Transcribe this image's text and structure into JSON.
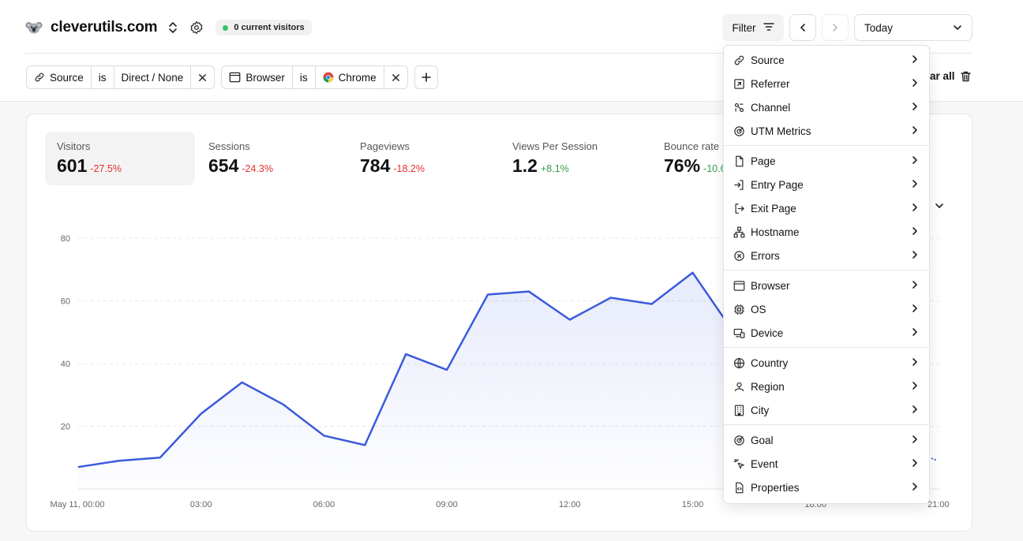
{
  "header": {
    "site_name": "cleverutils.com",
    "visitors_live": "0 current visitors",
    "filter_label": "Filter",
    "date_range": "Today",
    "clear_all": "ar all"
  },
  "filters": [
    {
      "field": "Source",
      "op": "is",
      "value": "Direct / None"
    },
    {
      "field": "Browser",
      "op": "is",
      "value": "Chrome"
    }
  ],
  "stats": [
    {
      "label": "Visitors",
      "value": "601",
      "change": "-27.5%",
      "trend": "negative",
      "active": true
    },
    {
      "label": "Sessions",
      "value": "654",
      "change": "-24.3%",
      "trend": "negative",
      "active": false
    },
    {
      "label": "Pageviews",
      "value": "784",
      "change": "-18.2%",
      "trend": "negative",
      "active": false
    },
    {
      "label": "Views Per Session",
      "value": "1.2",
      "change": "+8.1%",
      "trend": "positive",
      "active": false
    },
    {
      "label": "Bounce rate",
      "value": "76%",
      "change": "-10.6",
      "trend": "positive",
      "active": false
    }
  ],
  "filter_menu": {
    "groups": [
      [
        {
          "label": "Source",
          "icon": "link-icon"
        },
        {
          "label": "Referrer",
          "icon": "external-link-icon"
        },
        {
          "label": "Channel",
          "icon": "channel-icon"
        },
        {
          "label": "UTM Metrics",
          "icon": "target-icon"
        }
      ],
      [
        {
          "label": "Page",
          "icon": "file-icon"
        },
        {
          "label": "Entry Page",
          "icon": "log-in-icon"
        },
        {
          "label": "Exit Page",
          "icon": "log-out-icon"
        },
        {
          "label": "Hostname",
          "icon": "network-icon"
        },
        {
          "label": "Errors",
          "icon": "circle-x-icon"
        }
      ],
      [
        {
          "label": "Browser",
          "icon": "browser-icon"
        },
        {
          "label": "OS",
          "icon": "cpu-icon"
        },
        {
          "label": "Device",
          "icon": "devices-icon"
        }
      ],
      [
        {
          "label": "Country",
          "icon": "globe-icon"
        },
        {
          "label": "Region",
          "icon": "map-pin-icon"
        },
        {
          "label": "City",
          "icon": "building-icon"
        }
      ],
      [
        {
          "label": "Goal",
          "icon": "goal-icon"
        },
        {
          "label": "Event",
          "icon": "pointer-icon"
        },
        {
          "label": "Properties",
          "icon": "file-code-icon"
        }
      ]
    ]
  },
  "chart_data": {
    "type": "area",
    "x": [
      "00:00",
      "01:00",
      "02:00",
      "03:00",
      "04:00",
      "05:00",
      "06:00",
      "07:00",
      "08:00",
      "09:00",
      "10:00",
      "11:00",
      "12:00",
      "13:00",
      "14:00",
      "15:00",
      "16:00"
    ],
    "series": [
      {
        "values": [
          7,
          9,
          10,
          24,
          34,
          27,
          17,
          14,
          43,
          38,
          62,
          63,
          54,
          61,
          59,
          69,
          50
        ]
      }
    ],
    "x_tick_labels": [
      "May 11, 00:00",
      "03:00",
      "06:00",
      "09:00",
      "12:00",
      "15:00",
      "18:00",
      "21:00"
    ],
    "y_ticks": [
      20,
      40,
      60,
      80
    ],
    "ylim": [
      0,
      80
    ],
    "grid": true,
    "color": "#3b5bdb"
  },
  "colors": {
    "accent": "#3b5bdb",
    "negative": "#e03131",
    "positive": "#2f9e44",
    "live": "#34c36b"
  }
}
